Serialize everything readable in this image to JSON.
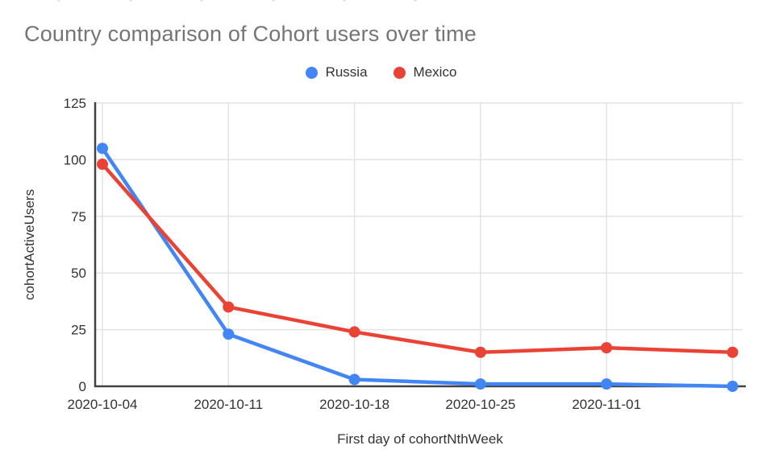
{
  "chart": {
    "title": "Country comparison of Cohort users over time"
  },
  "chart_data": {
    "type": "line",
    "title": "Country comparison of Cohort users over time",
    "xlabel": "First day of cohortNthWeek",
    "ylabel": "cohortActiveUsers",
    "categories": [
      "2020-10-04",
      "2020-10-11",
      "2020-10-18",
      "2020-10-25",
      "2020-11-01",
      ""
    ],
    "x_tick_labels": [
      "2020-10-04",
      "2020-10-11",
      "2020-10-18",
      "2020-10-25",
      "2020-11-01"
    ],
    "series": [
      {
        "name": "Russia",
        "color": "#4285F4",
        "values": [
          105,
          23,
          3,
          1,
          1,
          0
        ]
      },
      {
        "name": "Mexico",
        "color": "#EA4335",
        "values": [
          98,
          35,
          24,
          15,
          17,
          15
        ]
      }
    ],
    "ylim": [
      0,
      125
    ],
    "y_ticks": [
      0,
      25,
      50,
      75,
      100,
      125
    ],
    "grid": true,
    "legend_position": "top"
  },
  "style": {
    "title_color": "#757575",
    "label_color": "#333333",
    "grid_color": "#e3e3e3",
    "axis_color": "#424242",
    "background": "#ffffff"
  }
}
